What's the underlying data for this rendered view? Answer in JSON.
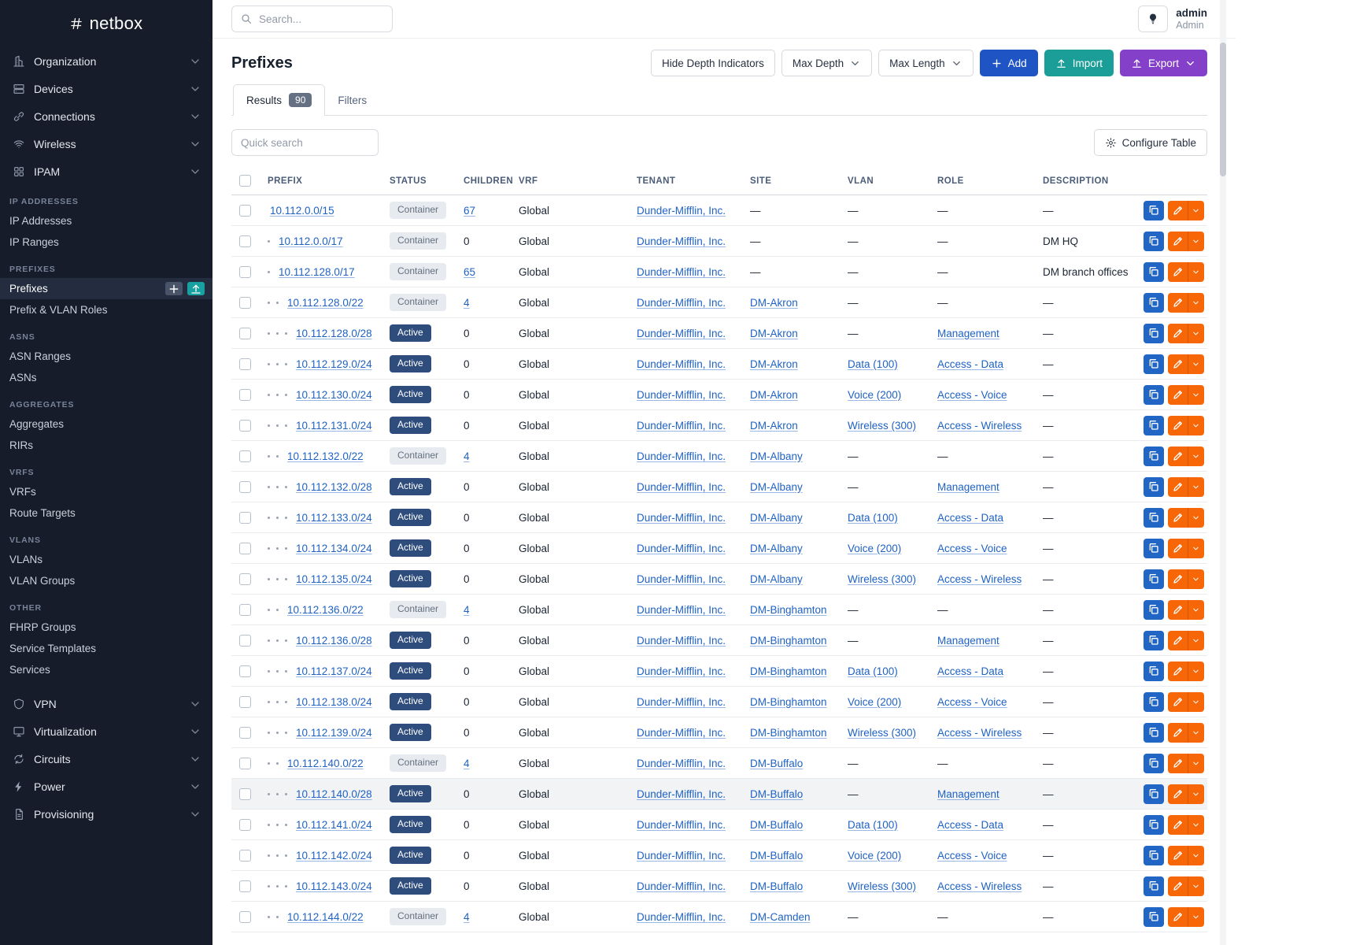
{
  "brand": {
    "name": "netbox"
  },
  "topbar": {
    "search_placeholder": "Search...",
    "user_name": "admin",
    "user_role": "Admin"
  },
  "page": {
    "title": "Prefixes"
  },
  "toolbar": {
    "hide_depth_label": "Hide Depth Indicators",
    "max_depth_label": "Max Depth",
    "max_length_label": "Max Length",
    "add_label": "Add",
    "import_label": "Import",
    "export_label": "Export"
  },
  "tabs": {
    "results_label": "Results",
    "results_count": "90",
    "filters_label": "Filters"
  },
  "controls": {
    "quick_search_placeholder": "Quick search",
    "configure_label": "Configure Table"
  },
  "sidebar": {
    "groups_top": [
      {
        "label": "Organization",
        "icon": "organization"
      },
      {
        "label": "Devices",
        "icon": "devices"
      },
      {
        "label": "Connections",
        "icon": "connections"
      },
      {
        "label": "Wireless",
        "icon": "wireless"
      },
      {
        "label": "IPAM",
        "icon": "ipam",
        "expanded": true
      }
    ],
    "sections": [
      {
        "header": "IP ADDRESSES",
        "items": [
          {
            "label": "IP Addresses"
          },
          {
            "label": "IP Ranges"
          }
        ]
      },
      {
        "header": "PREFIXES",
        "items": [
          {
            "label": "Prefixes",
            "active": true,
            "actions": [
              "add",
              "import"
            ]
          },
          {
            "label": "Prefix & VLAN Roles"
          }
        ]
      },
      {
        "header": "ASNS",
        "items": [
          {
            "label": "ASN Ranges"
          },
          {
            "label": "ASNs"
          }
        ]
      },
      {
        "header": "AGGREGATES",
        "items": [
          {
            "label": "Aggregates"
          },
          {
            "label": "RIRs"
          }
        ]
      },
      {
        "header": "VRFS",
        "items": [
          {
            "label": "VRFs"
          },
          {
            "label": "Route Targets"
          }
        ]
      },
      {
        "header": "VLANS",
        "items": [
          {
            "label": "VLANs"
          },
          {
            "label": "VLAN Groups"
          }
        ]
      },
      {
        "header": "OTHER",
        "items": [
          {
            "label": "FHRP Groups"
          },
          {
            "label": "Service Templates"
          },
          {
            "label": "Services"
          }
        ]
      }
    ],
    "groups_bottom": [
      {
        "label": "VPN",
        "icon": "vpn"
      },
      {
        "label": "Virtualization",
        "icon": "virtualization"
      },
      {
        "label": "Circuits",
        "icon": "circuits"
      },
      {
        "label": "Power",
        "icon": "power"
      },
      {
        "label": "Provisioning",
        "icon": "provisioning"
      }
    ]
  },
  "table": {
    "columns": [
      "PREFIX",
      "STATUS",
      "CHILDREN",
      "VRF",
      "TENANT",
      "SITE",
      "VLAN",
      "ROLE",
      "DESCRIPTION"
    ],
    "rows": [
      {
        "depth": 0,
        "prefix": "10.112.0.0/15",
        "status": "Container",
        "children": "67",
        "vrf": "Global",
        "tenant": "Dunder-Mifflin, Inc.",
        "site": "",
        "vlan": "",
        "role": "",
        "desc": ""
      },
      {
        "depth": 1,
        "prefix": "10.112.0.0/17",
        "status": "Container",
        "children": "0",
        "vrf": "Global",
        "tenant": "Dunder-Mifflin, Inc.",
        "site": "",
        "vlan": "",
        "role": "",
        "desc": "DM HQ"
      },
      {
        "depth": 1,
        "prefix": "10.112.128.0/17",
        "status": "Container",
        "children": "65",
        "vrf": "Global",
        "tenant": "Dunder-Mifflin, Inc.",
        "site": "",
        "vlan": "",
        "role": "",
        "desc": "DM branch offices"
      },
      {
        "depth": 2,
        "prefix": "10.112.128.0/22",
        "status": "Container",
        "children": "4",
        "vrf": "Global",
        "tenant": "Dunder-Mifflin, Inc.",
        "site": "DM-Akron",
        "vlan": "",
        "role": "",
        "desc": ""
      },
      {
        "depth": 3,
        "prefix": "10.112.128.0/28",
        "status": "Active",
        "children": "0",
        "vrf": "Global",
        "tenant": "Dunder-Mifflin, Inc.",
        "site": "DM-Akron",
        "vlan": "",
        "role": "Management",
        "desc": ""
      },
      {
        "depth": 3,
        "prefix": "10.112.129.0/24",
        "status": "Active",
        "children": "0",
        "vrf": "Global",
        "tenant": "Dunder-Mifflin, Inc.",
        "site": "DM-Akron",
        "vlan": "Data (100)",
        "role": "Access - Data",
        "desc": ""
      },
      {
        "depth": 3,
        "prefix": "10.112.130.0/24",
        "status": "Active",
        "children": "0",
        "vrf": "Global",
        "tenant": "Dunder-Mifflin, Inc.",
        "site": "DM-Akron",
        "vlan": "Voice (200)",
        "role": "Access - Voice",
        "desc": ""
      },
      {
        "depth": 3,
        "prefix": "10.112.131.0/24",
        "status": "Active",
        "children": "0",
        "vrf": "Global",
        "tenant": "Dunder-Mifflin, Inc.",
        "site": "DM-Akron",
        "vlan": "Wireless (300)",
        "role": "Access - Wireless",
        "desc": ""
      },
      {
        "depth": 2,
        "prefix": "10.112.132.0/22",
        "status": "Container",
        "children": "4",
        "vrf": "Global",
        "tenant": "Dunder-Mifflin, Inc.",
        "site": "DM-Albany",
        "vlan": "",
        "role": "",
        "desc": ""
      },
      {
        "depth": 3,
        "prefix": "10.112.132.0/28",
        "status": "Active",
        "children": "0",
        "vrf": "Global",
        "tenant": "Dunder-Mifflin, Inc.",
        "site": "DM-Albany",
        "vlan": "",
        "role": "Management",
        "desc": ""
      },
      {
        "depth": 3,
        "prefix": "10.112.133.0/24",
        "status": "Active",
        "children": "0",
        "vrf": "Global",
        "tenant": "Dunder-Mifflin, Inc.",
        "site": "DM-Albany",
        "vlan": "Data (100)",
        "role": "Access - Data",
        "desc": ""
      },
      {
        "depth": 3,
        "prefix": "10.112.134.0/24",
        "status": "Active",
        "children": "0",
        "vrf": "Global",
        "tenant": "Dunder-Mifflin, Inc.",
        "site": "DM-Albany",
        "vlan": "Voice (200)",
        "role": "Access - Voice",
        "desc": ""
      },
      {
        "depth": 3,
        "prefix": "10.112.135.0/24",
        "status": "Active",
        "children": "0",
        "vrf": "Global",
        "tenant": "Dunder-Mifflin, Inc.",
        "site": "DM-Albany",
        "vlan": "Wireless (300)",
        "role": "Access - Wireless",
        "desc": ""
      },
      {
        "depth": 2,
        "prefix": "10.112.136.0/22",
        "status": "Container",
        "children": "4",
        "vrf": "Global",
        "tenant": "Dunder-Mifflin, Inc.",
        "site": "DM-Binghamton",
        "vlan": "",
        "role": "",
        "desc": ""
      },
      {
        "depth": 3,
        "prefix": "10.112.136.0/28",
        "status": "Active",
        "children": "0",
        "vrf": "Global",
        "tenant": "Dunder-Mifflin, Inc.",
        "site": "DM-Binghamton",
        "vlan": "",
        "role": "Management",
        "desc": ""
      },
      {
        "depth": 3,
        "prefix": "10.112.137.0/24",
        "status": "Active",
        "children": "0",
        "vrf": "Global",
        "tenant": "Dunder-Mifflin, Inc.",
        "site": "DM-Binghamton",
        "vlan": "Data (100)",
        "role": "Access - Data",
        "desc": ""
      },
      {
        "depth": 3,
        "prefix": "10.112.138.0/24",
        "status": "Active",
        "children": "0",
        "vrf": "Global",
        "tenant": "Dunder-Mifflin, Inc.",
        "site": "DM-Binghamton",
        "vlan": "Voice (200)",
        "role": "Access - Voice",
        "desc": ""
      },
      {
        "depth": 3,
        "prefix": "10.112.139.0/24",
        "status": "Active",
        "children": "0",
        "vrf": "Global",
        "tenant": "Dunder-Mifflin, Inc.",
        "site": "DM-Binghamton",
        "vlan": "Wireless (300)",
        "role": "Access - Wireless",
        "desc": ""
      },
      {
        "depth": 2,
        "prefix": "10.112.140.0/22",
        "status": "Container",
        "children": "4",
        "vrf": "Global",
        "tenant": "Dunder-Mifflin, Inc.",
        "site": "DM-Buffalo",
        "vlan": "",
        "role": "",
        "desc": ""
      },
      {
        "depth": 3,
        "prefix": "10.112.140.0/28",
        "status": "Active",
        "children": "0",
        "vrf": "Global",
        "tenant": "Dunder-Mifflin, Inc.",
        "site": "DM-Buffalo",
        "vlan": "",
        "role": "Management",
        "desc": "",
        "highlight": true
      },
      {
        "depth": 3,
        "prefix": "10.112.141.0/24",
        "status": "Active",
        "children": "0",
        "vrf": "Global",
        "tenant": "Dunder-Mifflin, Inc.",
        "site": "DM-Buffalo",
        "vlan": "Data (100)",
        "role": "Access - Data",
        "desc": ""
      },
      {
        "depth": 3,
        "prefix": "10.112.142.0/24",
        "status": "Active",
        "children": "0",
        "vrf": "Global",
        "tenant": "Dunder-Mifflin, Inc.",
        "site": "DM-Buffalo",
        "vlan": "Voice (200)",
        "role": "Access - Voice",
        "desc": ""
      },
      {
        "depth": 3,
        "prefix": "10.112.143.0/24",
        "status": "Active",
        "children": "0",
        "vrf": "Global",
        "tenant": "Dunder-Mifflin, Inc.",
        "site": "DM-Buffalo",
        "vlan": "Wireless (300)",
        "role": "Access - Wireless",
        "desc": ""
      },
      {
        "depth": 2,
        "prefix": "10.112.144.0/22",
        "status": "Container",
        "children": "4",
        "vrf": "Global",
        "tenant": "Dunder-Mifflin, Inc.",
        "site": "DM-Camden",
        "vlan": "",
        "role": "",
        "desc": ""
      }
    ]
  }
}
